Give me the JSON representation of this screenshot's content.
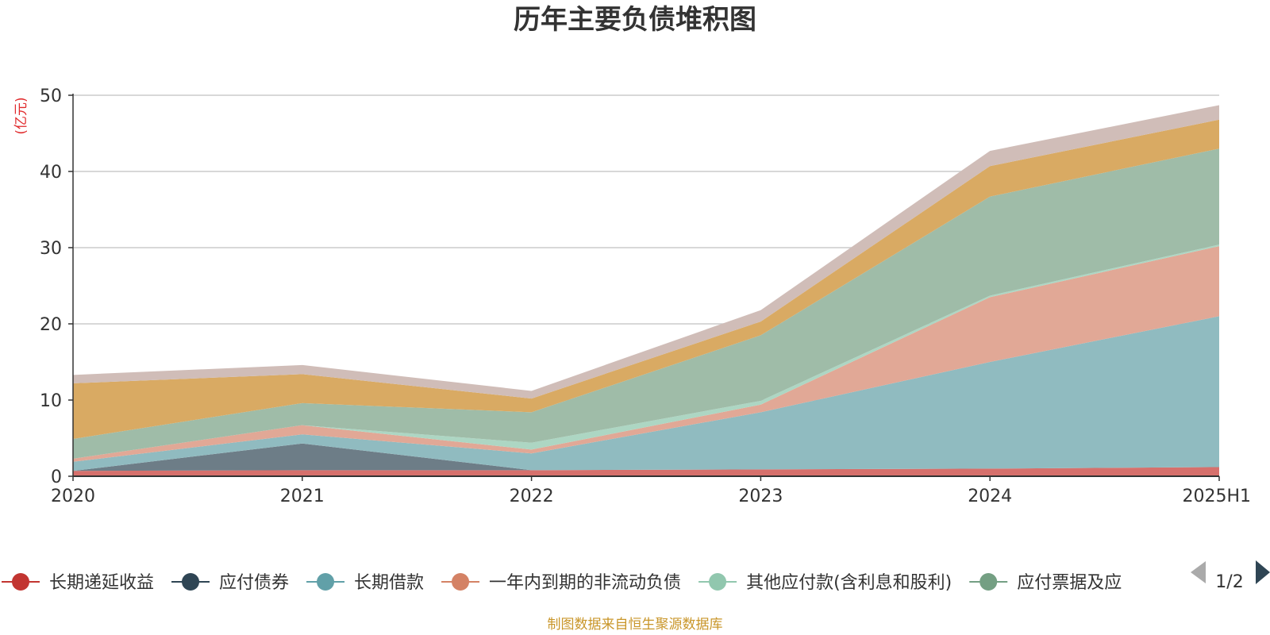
{
  "chart_data": {
    "type": "area",
    "stacked": true,
    "title": "历年主要负债堆积图",
    "ylabel": "(亿元)",
    "ylim": [
      0,
      50
    ],
    "yticks": [
      0,
      10,
      20,
      30,
      40,
      50
    ],
    "categories": [
      "2020",
      "2021",
      "2022",
      "2023",
      "2024",
      "2025H1"
    ],
    "grid": true,
    "series": [
      {
        "name": "长期递延收益",
        "color": "#c23531",
        "fill": "#d6706c",
        "values": [
          0.7,
          0.8,
          0.8,
          0.9,
          1.0,
          1.2
        ]
      },
      {
        "name": "应付债券",
        "color": "#2f4554",
        "fill": "#6d7d87",
        "values": [
          0.0,
          3.5,
          0.0,
          0.0,
          0.0,
          0.0
        ]
      },
      {
        "name": "长期借款",
        "color": "#61a0a8",
        "fill": "#90bbc0",
        "values": [
          1.2,
          1.2,
          2.2,
          7.5,
          14.0,
          19.8
        ]
      },
      {
        "name": "一年内到期的非流动负债",
        "color": "#d48265",
        "fill": "#e1a896",
        "values": [
          0.4,
          1.2,
          0.5,
          1.0,
          8.5,
          9.2
        ]
      },
      {
        "name": "其他应付款(含利息和股利)",
        "color": "#91c7ae",
        "fill": "#add6c3",
        "values": [
          0.0,
          0.0,
          0.9,
          0.5,
          0.2,
          0.2
        ]
      },
      {
        "name": "应付票据及应付账款",
        "color": "#749f83",
        "fill": "#9fbca8",
        "values": [
          2.6,
          2.9,
          4.0,
          8.6,
          13.0,
          12.6
        ]
      },
      {
        "name": "",
        "color": "#ca8622",
        "fill": "#d9aa63",
        "values": [
          7.3,
          3.8,
          1.8,
          1.8,
          4.0,
          3.8
        ]
      },
      {
        "name": "",
        "color": "#bda29a",
        "fill": "#d0bdb8",
        "values": [
          1.1,
          1.2,
          1.0,
          1.5,
          2.0,
          1.9
        ]
      }
    ],
    "legend": {
      "position": "bottom",
      "visible_items": [
        "长期递延收益",
        "应付债券",
        "长期借款",
        "一年内到期的非流动负债",
        "其他应付款(含利息和股利)",
        "应付票据及应付账款"
      ],
      "last_item_display": "应付票据及应",
      "page": "1/2"
    }
  },
  "source_note": "制图数据来自恒生聚源数据库"
}
